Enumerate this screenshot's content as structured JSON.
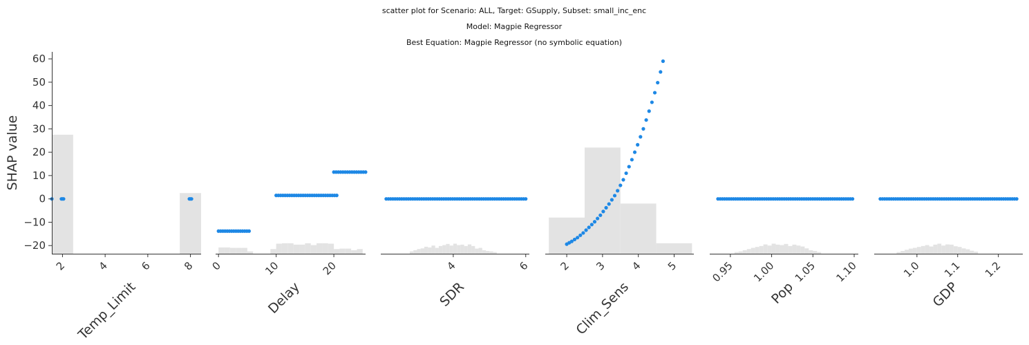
{
  "figure": {
    "title_lines": [
      "scatter plot for Scenario: ALL, Target: GSupply, Subset: small_inc_enc",
      "Model: Magpie Regressor",
      "Best Equation: Magpie Regressor (no symbolic equation)"
    ],
    "ylabel": "SHAP value",
    "ylim": [
      -23.5,
      63
    ],
    "yticks": [
      60,
      50,
      40,
      30,
      20,
      10,
      0,
      -10,
      -20
    ],
    "ytick_labels": [
      "60",
      "50",
      "40",
      "30",
      "20",
      "10",
      "0",
      "−10",
      "−20"
    ]
  },
  "colors": {
    "point": "#1e88e5",
    "histogram": "#e3e3e3",
    "axis": "#333333"
  },
  "chart_data": [
    {
      "type": "scatter",
      "xlabel": "Temp_Limit",
      "xlim": [
        1.5,
        8.5
      ],
      "xticks": [
        2,
        4,
        6,
        8
      ],
      "xtick_labels": [
        "2",
        "4",
        "6",
        "8"
      ],
      "points": [
        [
          1.5,
          0
        ],
        [
          1.95,
          0
        ],
        [
          2.0,
          0
        ],
        [
          2.05,
          0
        ],
        [
          7.95,
          0
        ],
        [
          8.0,
          0
        ],
        [
          8.05,
          0
        ]
      ],
      "histogram": {
        "bins": [
          [
            1.5,
            2.5,
            27.5
          ],
          [
            7.5,
            8.5,
            2.5
          ]
        ]
      }
    },
    {
      "type": "scatter",
      "xlabel": "Delay",
      "xlim": [
        -0.5,
        25.5
      ],
      "xticks": [
        0,
        10,
        20
      ],
      "xtick_labels": [
        "0",
        "10",
        "20"
      ],
      "segments": [
        {
          "x_from": 0,
          "x_to": 5.3,
          "y": -13.8
        },
        {
          "x_from": 10,
          "x_to": 20.5,
          "y": 1.5
        },
        {
          "x_from": 20,
          "x_to": 25.5,
          "y": 11.5
        }
      ],
      "histogram": {
        "bins": [
          [
            0,
            1,
            -20.8
          ],
          [
            1,
            2,
            -20.8
          ],
          [
            2,
            3,
            -21
          ],
          [
            3,
            4,
            -21
          ],
          [
            4,
            5,
            -21
          ],
          [
            5,
            6,
            -22.5
          ],
          [
            9,
            10,
            -21.5
          ],
          [
            10,
            11,
            -19.2
          ],
          [
            11,
            12,
            -19
          ],
          [
            12,
            13,
            -19
          ],
          [
            13,
            14,
            -19.6
          ],
          [
            14,
            15,
            -19.6
          ],
          [
            15,
            16,
            -19
          ],
          [
            16,
            17,
            -19.8
          ],
          [
            17,
            18,
            -19
          ],
          [
            18,
            19,
            -19
          ],
          [
            19,
            20,
            -19.2
          ],
          [
            20,
            21,
            -21.5
          ],
          [
            21,
            22,
            -21.3
          ],
          [
            22,
            23,
            -21.3
          ],
          [
            23,
            24,
            -22
          ],
          [
            24,
            25,
            -21.5
          ]
        ]
      }
    },
    {
      "type": "scatter",
      "xlabel": "SDR",
      "xlim": [
        2.0,
        6.1
      ],
      "xticks": [
        4,
        6
      ],
      "xtick_labels": [
        "4",
        "6"
      ],
      "segments": [
        {
          "x_from": 2.15,
          "x_to": 6.0,
          "y": 0
        }
      ],
      "histogram": {
        "bins": [
          [
            2.8,
            2.9,
            -22.5
          ],
          [
            2.9,
            3.0,
            -22
          ],
          [
            3.0,
            3.1,
            -21.5
          ],
          [
            3.1,
            3.2,
            -21.2
          ],
          [
            3.2,
            3.3,
            -20.5
          ],
          [
            3.3,
            3.4,
            -20.8
          ],
          [
            3.4,
            3.5,
            -20
          ],
          [
            3.5,
            3.6,
            -21
          ],
          [
            3.6,
            3.7,
            -20.2
          ],
          [
            3.7,
            3.8,
            -19.8
          ],
          [
            3.8,
            3.9,
            -19.3
          ],
          [
            3.9,
            4.0,
            -20
          ],
          [
            4.0,
            4.1,
            -19.2
          ],
          [
            4.1,
            4.2,
            -19.8
          ],
          [
            4.2,
            4.3,
            -19.6
          ],
          [
            4.3,
            4.4,
            -20.2
          ],
          [
            4.4,
            4.5,
            -19.5
          ],
          [
            4.5,
            4.6,
            -20.2
          ],
          [
            4.6,
            4.7,
            -21.3
          ],
          [
            4.7,
            4.8,
            -21
          ],
          [
            4.8,
            4.9,
            -22
          ],
          [
            4.9,
            5.0,
            -22.3
          ],
          [
            5.0,
            5.1,
            -22.5
          ],
          [
            5.1,
            5.2,
            -22.8
          ]
        ]
      }
    },
    {
      "type": "scatter",
      "xlabel": "Clim_Sens",
      "xlim": [
        1.4,
        5.55
      ],
      "xticks": [
        2,
        3,
        4,
        5
      ],
      "xtick_labels": [
        "2",
        "3",
        "4",
        "5"
      ],
      "points": [
        [
          2.0,
          -19.4
        ],
        [
          2.07,
          -18.8
        ],
        [
          2.14,
          -18.2
        ],
        [
          2.22,
          -17.4
        ],
        [
          2.3,
          -16.6
        ],
        [
          2.38,
          -15.6
        ],
        [
          2.46,
          -14.6
        ],
        [
          2.54,
          -13.4
        ],
        [
          2.62,
          -12.2
        ],
        [
          2.7,
          -11.0
        ],
        [
          2.78,
          -9.8
        ],
        [
          2.86,
          -8.4
        ],
        [
          2.94,
          -7.0
        ],
        [
          3.02,
          -5.4
        ],
        [
          3.1,
          -3.8
        ],
        [
          3.18,
          -2.2
        ],
        [
          3.26,
          -0.4
        ],
        [
          3.34,
          1.4
        ],
        [
          3.42,
          3.5
        ],
        [
          3.5,
          5.8
        ],
        [
          3.58,
          8.2
        ],
        [
          3.66,
          11.0
        ],
        [
          3.74,
          13.8
        ],
        [
          3.82,
          16.8
        ],
        [
          3.9,
          20.0
        ],
        [
          3.98,
          23.2
        ],
        [
          4.06,
          26.6
        ],
        [
          4.14,
          30.0
        ],
        [
          4.22,
          33.8
        ],
        [
          4.3,
          37.6
        ],
        [
          4.38,
          41.4
        ],
        [
          4.46,
          45.5
        ],
        [
          4.54,
          49.8
        ],
        [
          4.62,
          54.4
        ],
        [
          4.69,
          59.0
        ]
      ],
      "histogram": {
        "bins": [
          [
            1.5,
            2.5,
            -8
          ],
          [
            2.5,
            3.5,
            22
          ],
          [
            3.5,
            4.5,
            -2
          ],
          [
            4.5,
            5.5,
            -19
          ]
        ]
      }
    },
    {
      "type": "scatter",
      "xlabel": "Pop",
      "xlim": [
        0.925,
        1.105
      ],
      "xticks": [
        0.95,
        1.0,
        1.05,
        1.1
      ],
      "xtick_labels": [
        "0.95",
        "1.00",
        "1.05",
        "1.10"
      ],
      "segments": [
        {
          "x_from": 0.935,
          "x_to": 1.098,
          "y": 0
        }
      ],
      "histogram": {
        "bins": [
          [
            0.955,
            0.96,
            -22.8
          ],
          [
            0.96,
            0.965,
            -22.5
          ],
          [
            0.965,
            0.97,
            -22
          ],
          [
            0.97,
            0.975,
            -21.5
          ],
          [
            0.975,
            0.98,
            -21
          ],
          [
            0.98,
            0.985,
            -20.6
          ],
          [
            0.985,
            0.99,
            -20.2
          ],
          [
            0.99,
            0.995,
            -19.5
          ],
          [
            0.995,
            1.0,
            -20
          ],
          [
            1.0,
            1.005,
            -19.2
          ],
          [
            1.005,
            1.01,
            -19.6
          ],
          [
            1.01,
            1.015,
            -19.8
          ],
          [
            1.015,
            1.02,
            -19.3
          ],
          [
            1.02,
            1.025,
            -20.2
          ],
          [
            1.025,
            1.03,
            -19.6
          ],
          [
            1.03,
            1.035,
            -20
          ],
          [
            1.035,
            1.04,
            -20.4
          ],
          [
            1.04,
            1.045,
            -21.2
          ],
          [
            1.045,
            1.05,
            -22
          ],
          [
            1.05,
            1.055,
            -22.3
          ],
          [
            1.055,
            1.06,
            -22.8
          ]
        ]
      }
    },
    {
      "type": "scatter",
      "xlabel": "GDP",
      "xlim": [
        0.895,
        1.26
      ],
      "xticks": [
        1.0,
        1.1,
        1.2
      ],
      "xtick_labels": [
        "1.0",
        "1.1",
        "1.2"
      ],
      "segments": [
        {
          "x_from": 0.91,
          "x_to": 1.245,
          "y": 0
        }
      ],
      "histogram": {
        "bins": [
          [
            0.95,
            0.96,
            -22.8
          ],
          [
            0.96,
            0.97,
            -22.3
          ],
          [
            0.97,
            0.98,
            -21.8
          ],
          [
            0.98,
            0.99,
            -21.3
          ],
          [
            0.99,
            1.0,
            -21
          ],
          [
            1.0,
            1.01,
            -20.6
          ],
          [
            1.01,
            1.02,
            -20.2
          ],
          [
            1.02,
            1.03,
            -19.8
          ],
          [
            1.03,
            1.04,
            -20.4
          ],
          [
            1.04,
            1.05,
            -19.6
          ],
          [
            1.05,
            1.06,
            -19.2
          ],
          [
            1.06,
            1.07,
            -20
          ],
          [
            1.07,
            1.08,
            -19.5
          ],
          [
            1.08,
            1.09,
            -19.6
          ],
          [
            1.09,
            1.1,
            -20.3
          ],
          [
            1.1,
            1.11,
            -20.6
          ],
          [
            1.11,
            1.12,
            -21.2
          ],
          [
            1.12,
            1.13,
            -21.6
          ],
          [
            1.13,
            1.14,
            -22.2
          ],
          [
            1.14,
            1.15,
            -22.6
          ]
        ]
      }
    }
  ]
}
